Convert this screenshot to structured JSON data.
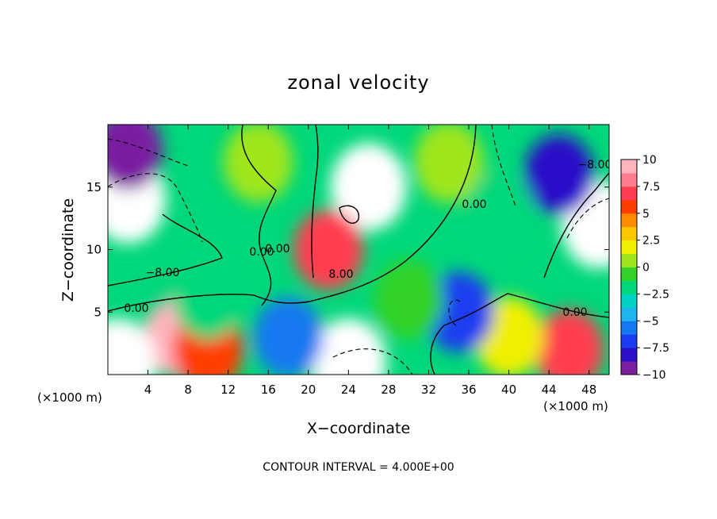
{
  "chart_data": {
    "type": "heatmap",
    "title": "zonal velocity",
    "xlabel": "X−coordinate",
    "ylabel": "Z−coordinate",
    "x_unit_left": "(×1000 m)",
    "x_unit_right": "(×1000 m)",
    "footer": "CONTOUR INTERVAL = 4.000E+00",
    "xlim": [
      0,
      50
    ],
    "ylim": [
      0,
      20
    ],
    "x_ticks": [
      "4",
      "8",
      "12",
      "16",
      "20",
      "24",
      "28",
      "32",
      "36",
      "40",
      "44",
      "48"
    ],
    "y_ticks": [
      "5",
      "10",
      "15"
    ],
    "colorbar": {
      "range": [
        -10,
        10
      ],
      "ticks": [
        "10",
        "7.5",
        "5",
        "2.5",
        "0",
        "−2.5",
        "−5",
        "−7.5",
        "−10"
      ],
      "colors": [
        "#7a1fa0",
        "#2b10c8",
        "#1a3cf0",
        "#1478f0",
        "#1eb4f0",
        "#00d2c8",
        "#00d77a",
        "#32d228",
        "#a0e61e",
        "#f0f000",
        "#fac800",
        "#ff8c00",
        "#ff3c00",
        "#ff3c50",
        "#ff7d8c",
        "#ffb4be"
      ]
    },
    "contour_labels": [
      "0.00",
      "−8.00",
      "0.00",
      "8.00",
      "0.00",
      "0.00",
      "−8.00",
      "0.00"
    ],
    "velocity_features": [
      {
        "x": 26,
        "z": 15,
        "value": 12
      },
      {
        "x": 22,
        "z": 10,
        "value": 7
      },
      {
        "x": 2,
        "z": 14,
        "value": -12
      },
      {
        "x": 49,
        "z": 12,
        "value": -12
      },
      {
        "x": 45,
        "z": 16,
        "value": -8
      },
      {
        "x": 2,
        "z": 18,
        "value": -9
      },
      {
        "x": 7,
        "z": 3,
        "value": 9
      },
      {
        "x": 10,
        "z": 2,
        "value": 6
      },
      {
        "x": 24,
        "z": 1,
        "value": 12
      },
      {
        "x": 46,
        "z": 2,
        "value": 7
      },
      {
        "x": 1,
        "z": 1,
        "value": 11
      },
      {
        "x": 40,
        "z": 3,
        "value": 2
      },
      {
        "x": 15,
        "z": 17,
        "value": 1
      },
      {
        "x": 34,
        "z": 17,
        "value": 0
      },
      {
        "x": 39,
        "z": 13,
        "value": -2
      },
      {
        "x": 18,
        "z": 3,
        "value": -6
      },
      {
        "x": 35,
        "z": 5,
        "value": -7
      },
      {
        "x": 10,
        "z": 6,
        "value": -2
      },
      {
        "x": 30,
        "z": 6,
        "value": -1
      }
    ]
  }
}
